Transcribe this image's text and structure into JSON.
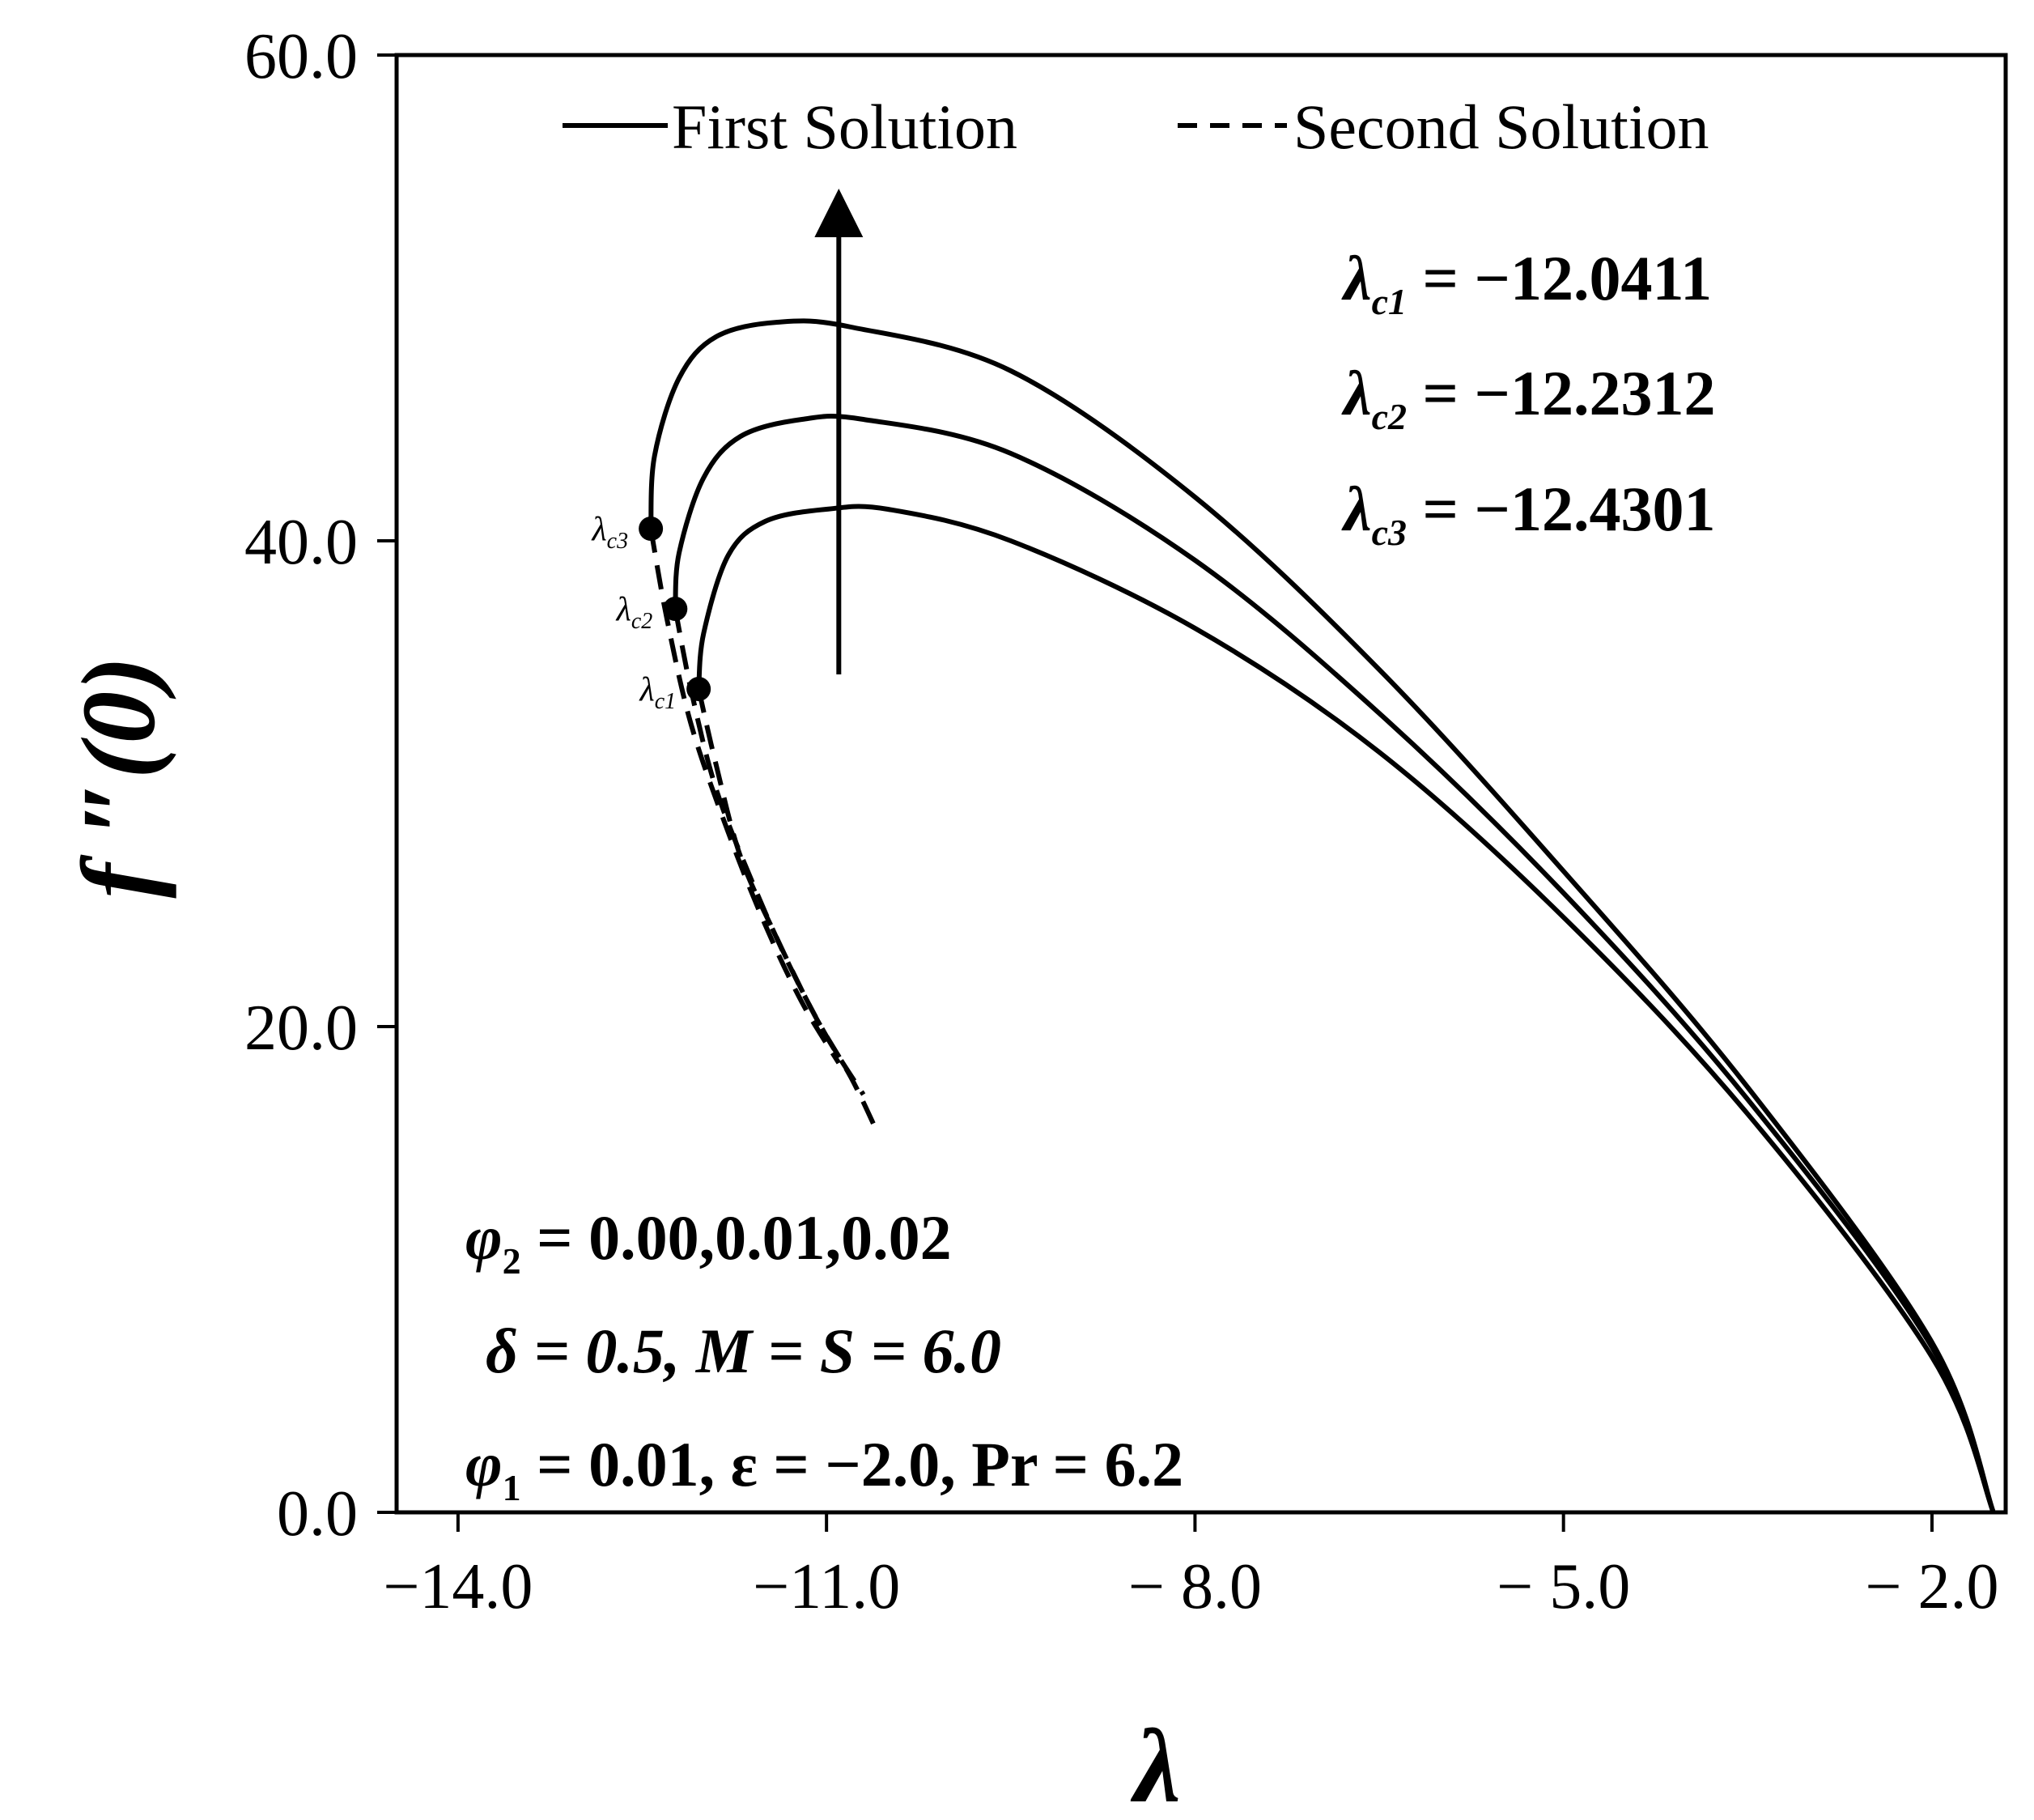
{
  "chart_data": {
    "type": "line",
    "title": "",
    "xlabel": "λ",
    "ylabel": "f ″(0)",
    "xlim": [
      -14.5,
      -1.4
    ],
    "ylim": [
      0,
      60
    ],
    "x_ticks": [
      -14.0,
      -11.0,
      -8.0,
      -5.0,
      -2.0
    ],
    "x_tick_labels": [
      "−14.0",
      "−11.0",
      "− 8.0",
      "− 5.0",
      "− 2.0"
    ],
    "y_ticks": [
      0,
      20,
      40,
      60
    ],
    "y_tick_labels": [
      "0.0",
      "20.0",
      "40.0",
      "60.0"
    ],
    "grid": false,
    "legend": {
      "position": "top",
      "entries": [
        {
          "label": "First Solution",
          "style": "solid"
        },
        {
          "label": "Second Solution",
          "style": "dashed"
        }
      ]
    },
    "series": [
      {
        "name": "First Solution (phi2 = 0.00)",
        "style": "solid",
        "x": [
          -12.0411,
          -12.0,
          -11.8,
          -11.5,
          -11.0,
          -10.5,
          -9.5,
          -8.0,
          -6.5,
          -5.0,
          -3.5,
          -2.0,
          -1.5
        ],
        "y": [
          33.9,
          36.2,
          39.4,
          40.8,
          41.3,
          41.3,
          40.0,
          36.4,
          31.3,
          24.5,
          16.4,
          6.4,
          0.0
        ]
      },
      {
        "name": "Second Solution (phi2 = 0.00)",
        "style": "dashed",
        "x": [
          -12.0411,
          -11.9,
          -11.7,
          -11.4,
          -11.1,
          -10.8,
          -10.6
        ],
        "y": [
          33.9,
          30.8,
          27.0,
          23.6,
          20.5,
          17.9,
          15.8
        ]
      },
      {
        "name": "First Solution (phi2 = 0.01)",
        "style": "solid",
        "x": [
          -12.2312,
          -12.2,
          -12.0,
          -11.7,
          -11.2,
          -10.7,
          -9.5,
          -8.0,
          -6.5,
          -5.0,
          -3.5,
          -2.0,
          -1.5
        ],
        "y": [
          37.2,
          39.5,
          42.6,
          44.3,
          45.0,
          45.0,
          43.6,
          39.2,
          32.9,
          25.5,
          17.0,
          6.8,
          0.0
        ]
      },
      {
        "name": "Second Solution (phi2 = 0.01)",
        "style": "dashed",
        "x": [
          -12.2312,
          -12.1,
          -11.9,
          -11.6,
          -11.3,
          -11.0,
          -10.7
        ],
        "y": [
          37.2,
          33.8,
          29.8,
          25.9,
          22.5,
          19.6,
          17.2
        ]
      },
      {
        "name": "First Solution (phi2 = 0.02)",
        "style": "solid",
        "x": [
          -12.4301,
          -12.4,
          -12.2,
          -11.9,
          -11.4,
          -10.8,
          -9.5,
          -8.0,
          -6.5,
          -5.0,
          -3.5,
          -2.0,
          -1.5
        ],
        "y": [
          40.5,
          43.5,
          46.7,
          48.4,
          49.0,
          48.8,
          47.0,
          41.8,
          34.7,
          26.4,
          17.5,
          7.0,
          0.0
        ]
      },
      {
        "name": "Second Solution (phi2 = 0.02)",
        "style": "dashed",
        "x": [
          -12.4301,
          -12.3,
          -12.1,
          -11.8,
          -11.5,
          -11.2,
          -10.9
        ],
        "y": [
          40.5,
          36.8,
          32.4,
          28.0,
          24.2,
          21.0,
          18.5
        ]
      }
    ],
    "critical_points": [
      {
        "label": "λc1",
        "x": -12.0411,
        "y": 33.9
      },
      {
        "label": "λc2",
        "x": -12.2312,
        "y": 37.2
      },
      {
        "label": "λc3",
        "x": -12.4301,
        "y": 40.5
      }
    ],
    "arrow": {
      "x": -10.9,
      "y_from": 34.5,
      "y_to": 53.5,
      "meaning": "increasing phi2"
    },
    "annotations": {
      "critical_values": [
        {
          "sym": "λ",
          "sub": "c1",
          "text": " = −12.0411"
        },
        {
          "sym": "λ",
          "sub": "c2",
          "text": " = −12.2312"
        },
        {
          "sym": "λ",
          "sub": "c3",
          "text": " = −12.4301"
        }
      ],
      "params_line1": {
        "sym": "φ",
        "sub": "2",
        "text": " = 0.00,0.01,0.02"
      },
      "params_line2": "δ = 0.5, M = S = 6.0",
      "params_line3": {
        "sym": "φ",
        "sub": "1",
        "text": " = 0.01, ε = −2.0, Pr = 6.2"
      }
    }
  }
}
